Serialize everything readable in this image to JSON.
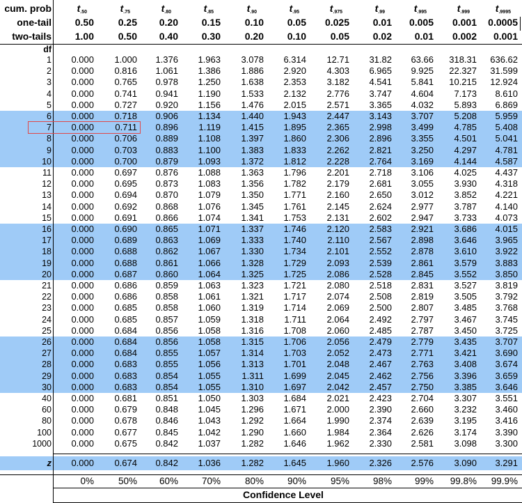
{
  "header": {
    "cum_label": "cum. prob",
    "one_label": "one-tail",
    "two_label": "two-tails",
    "df_label": "df",
    "subscripts": [
      ".50",
      ".75",
      ".80",
      ".85",
      ".90",
      ".95",
      ".975",
      ".99",
      ".995",
      ".999",
      ".9995"
    ],
    "t_symbol": "t",
    "one_tail": [
      "0.50",
      "0.25",
      "0.20",
      "0.15",
      "0.10",
      "0.05",
      "0.025",
      "0.01",
      "0.005",
      "0.001",
      "0.0005"
    ],
    "two_tails": [
      "1.00",
      "0.50",
      "0.40",
      "0.30",
      "0.20",
      "0.10",
      "0.05",
      "0.02",
      "0.01",
      "0.002",
      "0.001"
    ]
  },
  "rows": [
    {
      "df": "1",
      "v": [
        "0.000",
        "1.000",
        "1.376",
        "1.963",
        "3.078",
        "6.314",
        "12.71",
        "31.82",
        "63.66",
        "318.31",
        "636.62"
      ]
    },
    {
      "df": "2",
      "v": [
        "0.000",
        "0.816",
        "1.061",
        "1.386",
        "1.886",
        "2.920",
        "4.303",
        "6.965",
        "9.925",
        "22.327",
        "31.599"
      ]
    },
    {
      "df": "3",
      "v": [
        "0.000",
        "0.765",
        "0.978",
        "1.250",
        "1.638",
        "2.353",
        "3.182",
        "4.541",
        "5.841",
        "10.215",
        "12.924"
      ]
    },
    {
      "df": "4",
      "v": [
        "0.000",
        "0.741",
        "0.941",
        "1.190",
        "1.533",
        "2.132",
        "2.776",
        "3.747",
        "4.604",
        "7.173",
        "8.610"
      ]
    },
    {
      "df": "5",
      "v": [
        "0.000",
        "0.727",
        "0.920",
        "1.156",
        "1.476",
        "2.015",
        "2.571",
        "3.365",
        "4.032",
        "5.893",
        "6.869"
      ]
    },
    {
      "df": "6",
      "v": [
        "0.000",
        "0.718",
        "0.906",
        "1.134",
        "1.440",
        "1.943",
        "2.447",
        "3.143",
        "3.707",
        "5.208",
        "5.959"
      ]
    },
    {
      "df": "7",
      "v": [
        "0.000",
        "0.711",
        "0.896",
        "1.119",
        "1.415",
        "1.895",
        "2.365",
        "2.998",
        "3.499",
        "4.785",
        "5.408"
      ]
    },
    {
      "df": "8",
      "v": [
        "0.000",
        "0.706",
        "0.889",
        "1.108",
        "1.397",
        "1.860",
        "2.306",
        "2.896",
        "3.355",
        "4.501",
        "5.041"
      ]
    },
    {
      "df": "9",
      "v": [
        "0.000",
        "0.703",
        "0.883",
        "1.100",
        "1.383",
        "1.833",
        "2.262",
        "2.821",
        "3.250",
        "4.297",
        "4.781"
      ]
    },
    {
      "df": "10",
      "v": [
        "0.000",
        "0.700",
        "0.879",
        "1.093",
        "1.372",
        "1.812",
        "2.228",
        "2.764",
        "3.169",
        "4.144",
        "4.587"
      ]
    },
    {
      "df": "11",
      "v": [
        "0.000",
        "0.697",
        "0.876",
        "1.088",
        "1.363",
        "1.796",
        "2.201",
        "2.718",
        "3.106",
        "4.025",
        "4.437"
      ]
    },
    {
      "df": "12",
      "v": [
        "0.000",
        "0.695",
        "0.873",
        "1.083",
        "1.356",
        "1.782",
        "2.179",
        "2.681",
        "3.055",
        "3.930",
        "4.318"
      ]
    },
    {
      "df": "13",
      "v": [
        "0.000",
        "0.694",
        "0.870",
        "1.079",
        "1.350",
        "1.771",
        "2.160",
        "2.650",
        "3.012",
        "3.852",
        "4.221"
      ]
    },
    {
      "df": "14",
      "v": [
        "0.000",
        "0.692",
        "0.868",
        "1.076",
        "1.345",
        "1.761",
        "2.145",
        "2.624",
        "2.977",
        "3.787",
        "4.140"
      ]
    },
    {
      "df": "15",
      "v": [
        "0.000",
        "0.691",
        "0.866",
        "1.074",
        "1.341",
        "1.753",
        "2.131",
        "2.602",
        "2.947",
        "3.733",
        "4.073"
      ]
    },
    {
      "df": "16",
      "v": [
        "0.000",
        "0.690",
        "0.865",
        "1.071",
        "1.337",
        "1.746",
        "2.120",
        "2.583",
        "2.921",
        "3.686",
        "4.015"
      ]
    },
    {
      "df": "17",
      "v": [
        "0.000",
        "0.689",
        "0.863",
        "1.069",
        "1.333",
        "1.740",
        "2.110",
        "2.567",
        "2.898",
        "3.646",
        "3.965"
      ]
    },
    {
      "df": "18",
      "v": [
        "0.000",
        "0.688",
        "0.862",
        "1.067",
        "1.330",
        "1.734",
        "2.101",
        "2.552",
        "2.878",
        "3.610",
        "3.922"
      ]
    },
    {
      "df": "19",
      "v": [
        "0.000",
        "0.688",
        "0.861",
        "1.066",
        "1.328",
        "1.729",
        "2.093",
        "2.539",
        "2.861",
        "3.579",
        "3.883"
      ]
    },
    {
      "df": "20",
      "v": [
        "0.000",
        "0.687",
        "0.860",
        "1.064",
        "1.325",
        "1.725",
        "2.086",
        "2.528",
        "2.845",
        "3.552",
        "3.850"
      ]
    },
    {
      "df": "21",
      "v": [
        "0.000",
        "0.686",
        "0.859",
        "1.063",
        "1.323",
        "1.721",
        "2.080",
        "2.518",
        "2.831",
        "3.527",
        "3.819"
      ]
    },
    {
      "df": "22",
      "v": [
        "0.000",
        "0.686",
        "0.858",
        "1.061",
        "1.321",
        "1.717",
        "2.074",
        "2.508",
        "2.819",
        "3.505",
        "3.792"
      ]
    },
    {
      "df": "23",
      "v": [
        "0.000",
        "0.685",
        "0.858",
        "1.060",
        "1.319",
        "1.714",
        "2.069",
        "2.500",
        "2.807",
        "3.485",
        "3.768"
      ]
    },
    {
      "df": "24",
      "v": [
        "0.000",
        "0.685",
        "0.857",
        "1.059",
        "1.318",
        "1.711",
        "2.064",
        "2.492",
        "2.797",
        "3.467",
        "3.745"
      ]
    },
    {
      "df": "25",
      "v": [
        "0.000",
        "0.684",
        "0.856",
        "1.058",
        "1.316",
        "1.708",
        "2.060",
        "2.485",
        "2.787",
        "3.450",
        "3.725"
      ]
    },
    {
      "df": "26",
      "v": [
        "0.000",
        "0.684",
        "0.856",
        "1.058",
        "1.315",
        "1.706",
        "2.056",
        "2.479",
        "2.779",
        "3.435",
        "3.707"
      ]
    },
    {
      "df": "27",
      "v": [
        "0.000",
        "0.684",
        "0.855",
        "1.057",
        "1.314",
        "1.703",
        "2.052",
        "2.473",
        "2.771",
        "3.421",
        "3.690"
      ]
    },
    {
      "df": "28",
      "v": [
        "0.000",
        "0.683",
        "0.855",
        "1.056",
        "1.313",
        "1.701",
        "2.048",
        "2.467",
        "2.763",
        "3.408",
        "3.674"
      ]
    },
    {
      "df": "29",
      "v": [
        "0.000",
        "0.683",
        "0.854",
        "1.055",
        "1.311",
        "1.699",
        "2.045",
        "2.462",
        "2.756",
        "3.396",
        "3.659"
      ]
    },
    {
      "df": "30",
      "v": [
        "0.000",
        "0.683",
        "0.854",
        "1.055",
        "1.310",
        "1.697",
        "2.042",
        "2.457",
        "2.750",
        "3.385",
        "3.646"
      ]
    },
    {
      "df": "40",
      "v": [
        "0.000",
        "0.681",
        "0.851",
        "1.050",
        "1.303",
        "1.684",
        "2.021",
        "2.423",
        "2.704",
        "3.307",
        "3.551"
      ]
    },
    {
      "df": "60",
      "v": [
        "0.000",
        "0.679",
        "0.848",
        "1.045",
        "1.296",
        "1.671",
        "2.000",
        "2.390",
        "2.660",
        "3.232",
        "3.460"
      ]
    },
    {
      "df": "80",
      "v": [
        "0.000",
        "0.678",
        "0.846",
        "1.043",
        "1.292",
        "1.664",
        "1.990",
        "2.374",
        "2.639",
        "3.195",
        "3.416"
      ]
    },
    {
      "df": "100",
      "v": [
        "0.000",
        "0.677",
        "0.845",
        "1.042",
        "1.290",
        "1.660",
        "1.984",
        "2.364",
        "2.626",
        "3.174",
        "3.390"
      ]
    },
    {
      "df": "1000",
      "v": [
        "0.000",
        "0.675",
        "0.842",
        "1.037",
        "1.282",
        "1.646",
        "1.962",
        "2.330",
        "2.581",
        "3.098",
        "3.300"
      ]
    }
  ],
  "z_row": {
    "label": "z",
    "v": [
      "0.000",
      "0.674",
      "0.842",
      "1.036",
      "1.282",
      "1.645",
      "1.960",
      "2.326",
      "2.576",
      "3.090",
      "3.291"
    ]
  },
  "confidence": [
    "0%",
    "50%",
    "60%",
    "70%",
    "80%",
    "90%",
    "95%",
    "98%",
    "99%",
    "99.8%",
    "99.9%"
  ],
  "confidence_title": "Confidence Level",
  "band_rows": [
    "6",
    "7",
    "8",
    "9",
    "10",
    "16",
    "17",
    "18",
    "19",
    "20",
    "26",
    "27",
    "28",
    "29",
    "30"
  ],
  "highlight_color": "#9fcbf7",
  "marker_color": "#e04848"
}
